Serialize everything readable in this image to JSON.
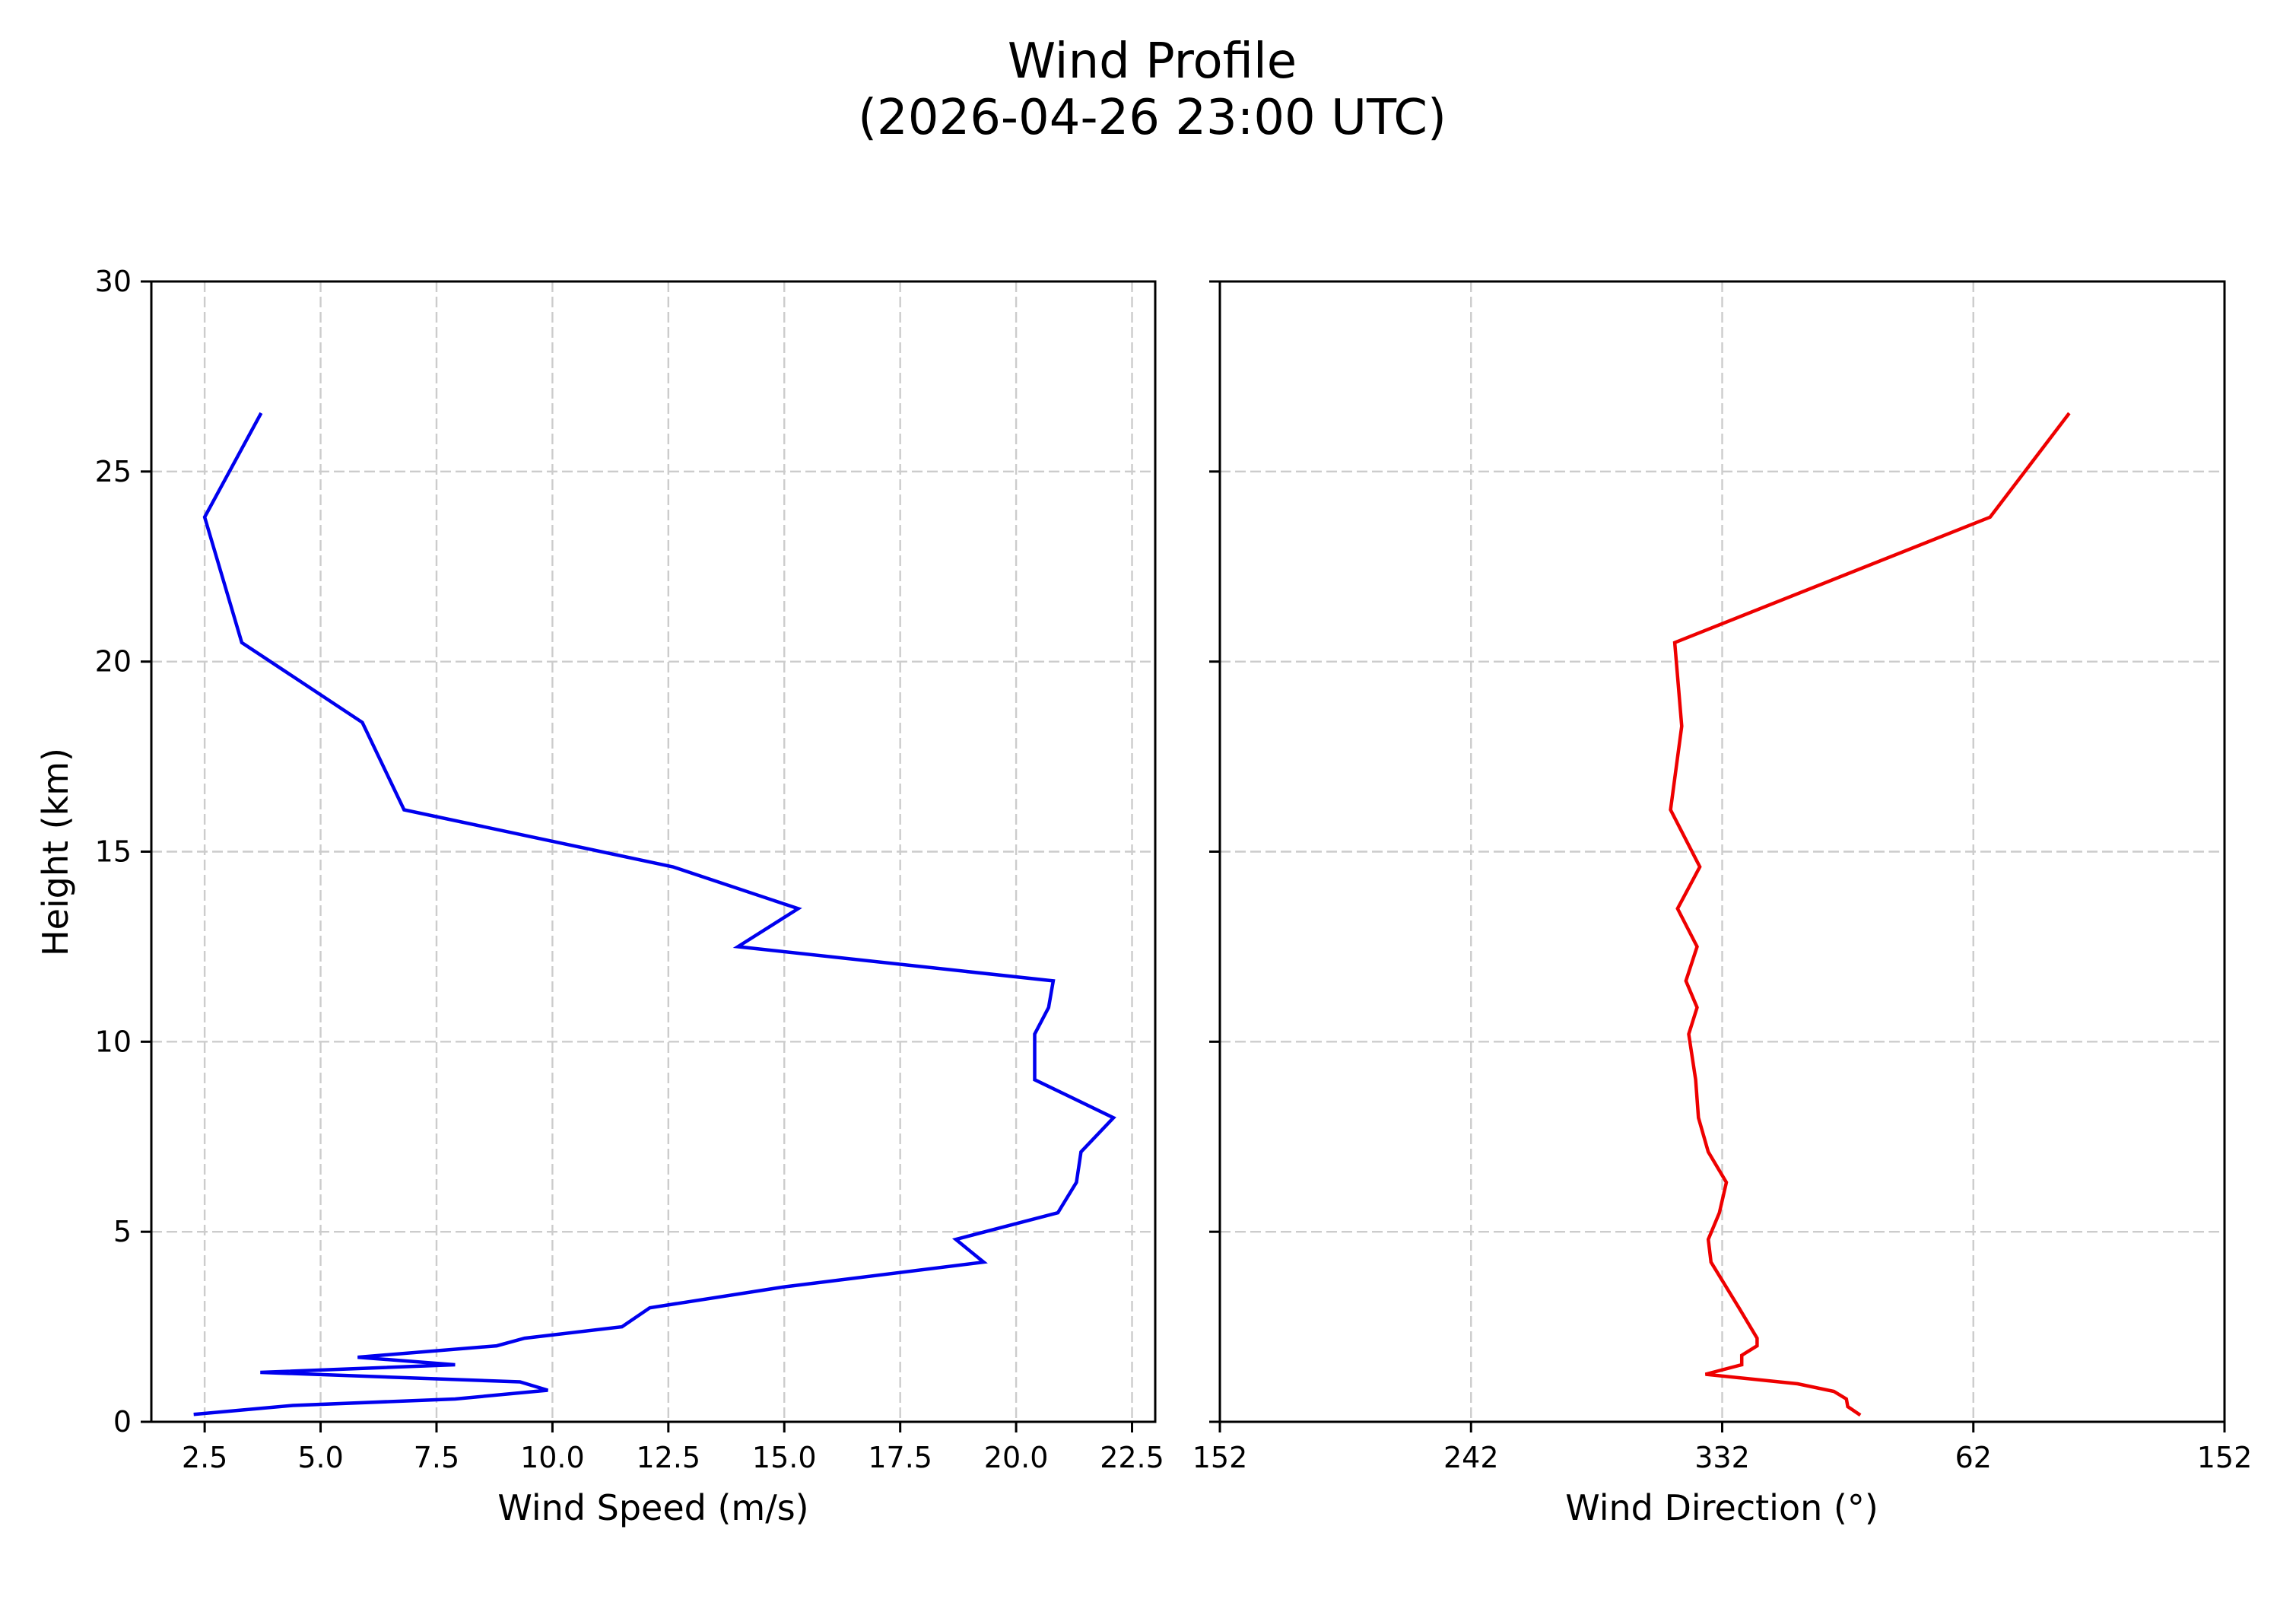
{
  "figure": {
    "title_line1": "Wind Profile",
    "title_line2": "(2026-04-26 23:00 UTC)"
  },
  "chart_data": [
    {
      "type": "line",
      "title": "",
      "xlabel": "Wind Speed (m/s)",
      "ylabel": "Height (km)",
      "xlim": [
        1.35,
        23.0
      ],
      "ylim": [
        0,
        30
      ],
      "xticks": [
        "2.5",
        "5.0",
        "7.5",
        "10.0",
        "12.5",
        "15.0",
        "17.5",
        "20.0",
        "22.5"
      ],
      "xtick_values": [
        2.5,
        5.0,
        7.5,
        10.0,
        12.5,
        15.0,
        17.5,
        20.0,
        22.5
      ],
      "yticks": [
        "0",
        "5",
        "10",
        "15",
        "20",
        "25",
        "30"
      ],
      "ytick_values": [
        0,
        5,
        10,
        15,
        20,
        25,
        30
      ],
      "grid": true,
      "color": "#0000ee",
      "series": [
        {
          "name": "Wind Speed",
          "x": [
            3.7,
            2.5,
            3.3,
            5.9,
            6.8,
            12.6,
            15.3,
            14.0,
            20.8,
            20.7,
            20.4,
            20.4,
            22.1,
            21.4,
            21.3,
            20.9,
            18.7,
            19.3,
            15.0,
            12.1,
            11.5,
            9.4,
            8.8,
            5.8,
            7.9,
            3.7,
            9.3,
            9.9,
            7.9,
            4.4,
            2.3
          ],
          "y": [
            26.5,
            23.8,
            20.5,
            18.4,
            16.1,
            14.6,
            13.5,
            12.5,
            11.6,
            10.9,
            10.2,
            9.0,
            8.0,
            7.1,
            6.3,
            5.5,
            4.8,
            4.2,
            3.55,
            3.0,
            2.5,
            2.2,
            2.0,
            1.7,
            1.5,
            1.3,
            1.05,
            0.83,
            0.6,
            0.43,
            0.2
          ]
        }
      ]
    },
    {
      "type": "line",
      "title": "",
      "xlabel": "Wind Direction (°)",
      "ylabel": "",
      "xlim": [
        152,
        512
      ],
      "ylim": [
        0,
        30
      ],
      "xticks": [
        "152",
        "242",
        "332",
        "62",
        "152"
      ],
      "xtick_values": [
        152,
        242,
        332,
        422,
        512
      ],
      "yticks": [
        "",
        "",
        "",
        "",
        "",
        "",
        ""
      ],
      "ytick_values": [
        0,
        5,
        10,
        15,
        20,
        25,
        30
      ],
      "grid": true,
      "color": "#ee0000",
      "series": [
        {
          "name": "Wind Direction",
          "x": [
            96,
            68,
            315,
            317.5,
            313.5,
            324,
            316,
            323,
            319,
            323,
            320,
            322.5,
            323.5,
            327,
            333.5,
            331,
            327,
            328,
            338,
            344.5,
            344.5,
            339,
            339,
            326,
            359,
            12,
            16.5,
            17,
            21
          ],
          "y": [
            26.5,
            23.8,
            20.5,
            18.3,
            16.1,
            14.6,
            13.5,
            12.5,
            11.6,
            10.9,
            10.2,
            9.0,
            8.0,
            7.1,
            6.3,
            5.5,
            4.8,
            4.2,
            3.0,
            2.2,
            2.0,
            1.75,
            1.5,
            1.25,
            1.0,
            0.8,
            0.6,
            0.4,
            0.2
          ]
        }
      ]
    }
  ]
}
